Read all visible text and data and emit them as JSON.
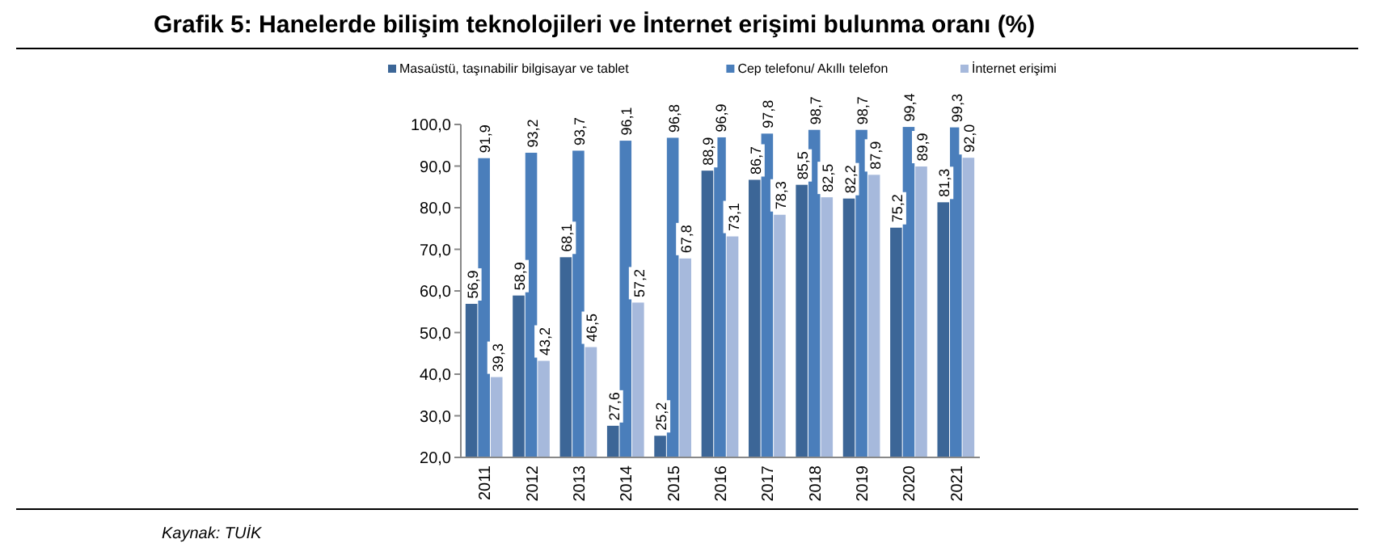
{
  "chart_data": {
    "type": "bar",
    "title": "Grafik 5: Hanelerde bilişim teknolojileri ve İnternet erişimi bulunma oranı (%)",
    "categories": [
      "2011",
      "2012",
      "2013",
      "2014",
      "2015",
      "2016",
      "2017",
      "2018",
      "2019",
      "2020",
      "2021"
    ],
    "series": [
      {
        "name": "Masaüstü, taşınabilir bilgisayar ve tablet",
        "color": "#3c6697",
        "values": [
          56.9,
          58.9,
          68.1,
          27.6,
          25.2,
          88.9,
          86.7,
          85.5,
          82.2,
          75.2,
          81.3
        ],
        "value_labels": [
          "56,9",
          "58,9",
          "68,1",
          "27,6",
          "25,2",
          "88,9",
          "86,7",
          "85,5",
          "82,2",
          "75,2",
          "81,3"
        ]
      },
      {
        "name": "Cep telefonu/ Akıllı telefon",
        "color": "#4a7ebb",
        "values": [
          91.9,
          93.2,
          93.7,
          96.1,
          96.8,
          96.9,
          97.8,
          98.7,
          98.7,
          99.4,
          99.3
        ],
        "value_labels": [
          "91,9",
          "93,2",
          "93,7",
          "96,1",
          "96,8",
          "96,9",
          "97,8",
          "98,7",
          "98,7",
          "99,4",
          "99,3"
        ]
      },
      {
        "name": "İnternet erişimi",
        "color": "#a6b9dc",
        "values": [
          39.3,
          43.2,
          46.5,
          57.2,
          67.8,
          73.1,
          78.3,
          82.5,
          87.9,
          89.9,
          92.0
        ],
        "value_labels": [
          "39,3",
          "43,2",
          "46,5",
          "57,2",
          "67,8",
          "73,1",
          "78,3",
          "82,5",
          "87,9",
          "89,9",
          "92,0"
        ]
      }
    ],
    "ylim": [
      20,
      100
    ],
    "yticks": [
      {
        "value": 20,
        "label": "20,0"
      },
      {
        "value": 30,
        "label": "30,0"
      },
      {
        "value": 40,
        "label": "40,0"
      },
      {
        "value": 50,
        "label": "50,0"
      },
      {
        "value": 60,
        "label": "60,0"
      },
      {
        "value": 70,
        "label": "70,0"
      },
      {
        "value": 80,
        "label": "80,0"
      },
      {
        "value": 90,
        "label": "90,0"
      },
      {
        "value": 100,
        "label": "100,0"
      }
    ],
    "legend": "top",
    "grid": false,
    "annotations": [
      "Kaynak: TUİK"
    ]
  }
}
